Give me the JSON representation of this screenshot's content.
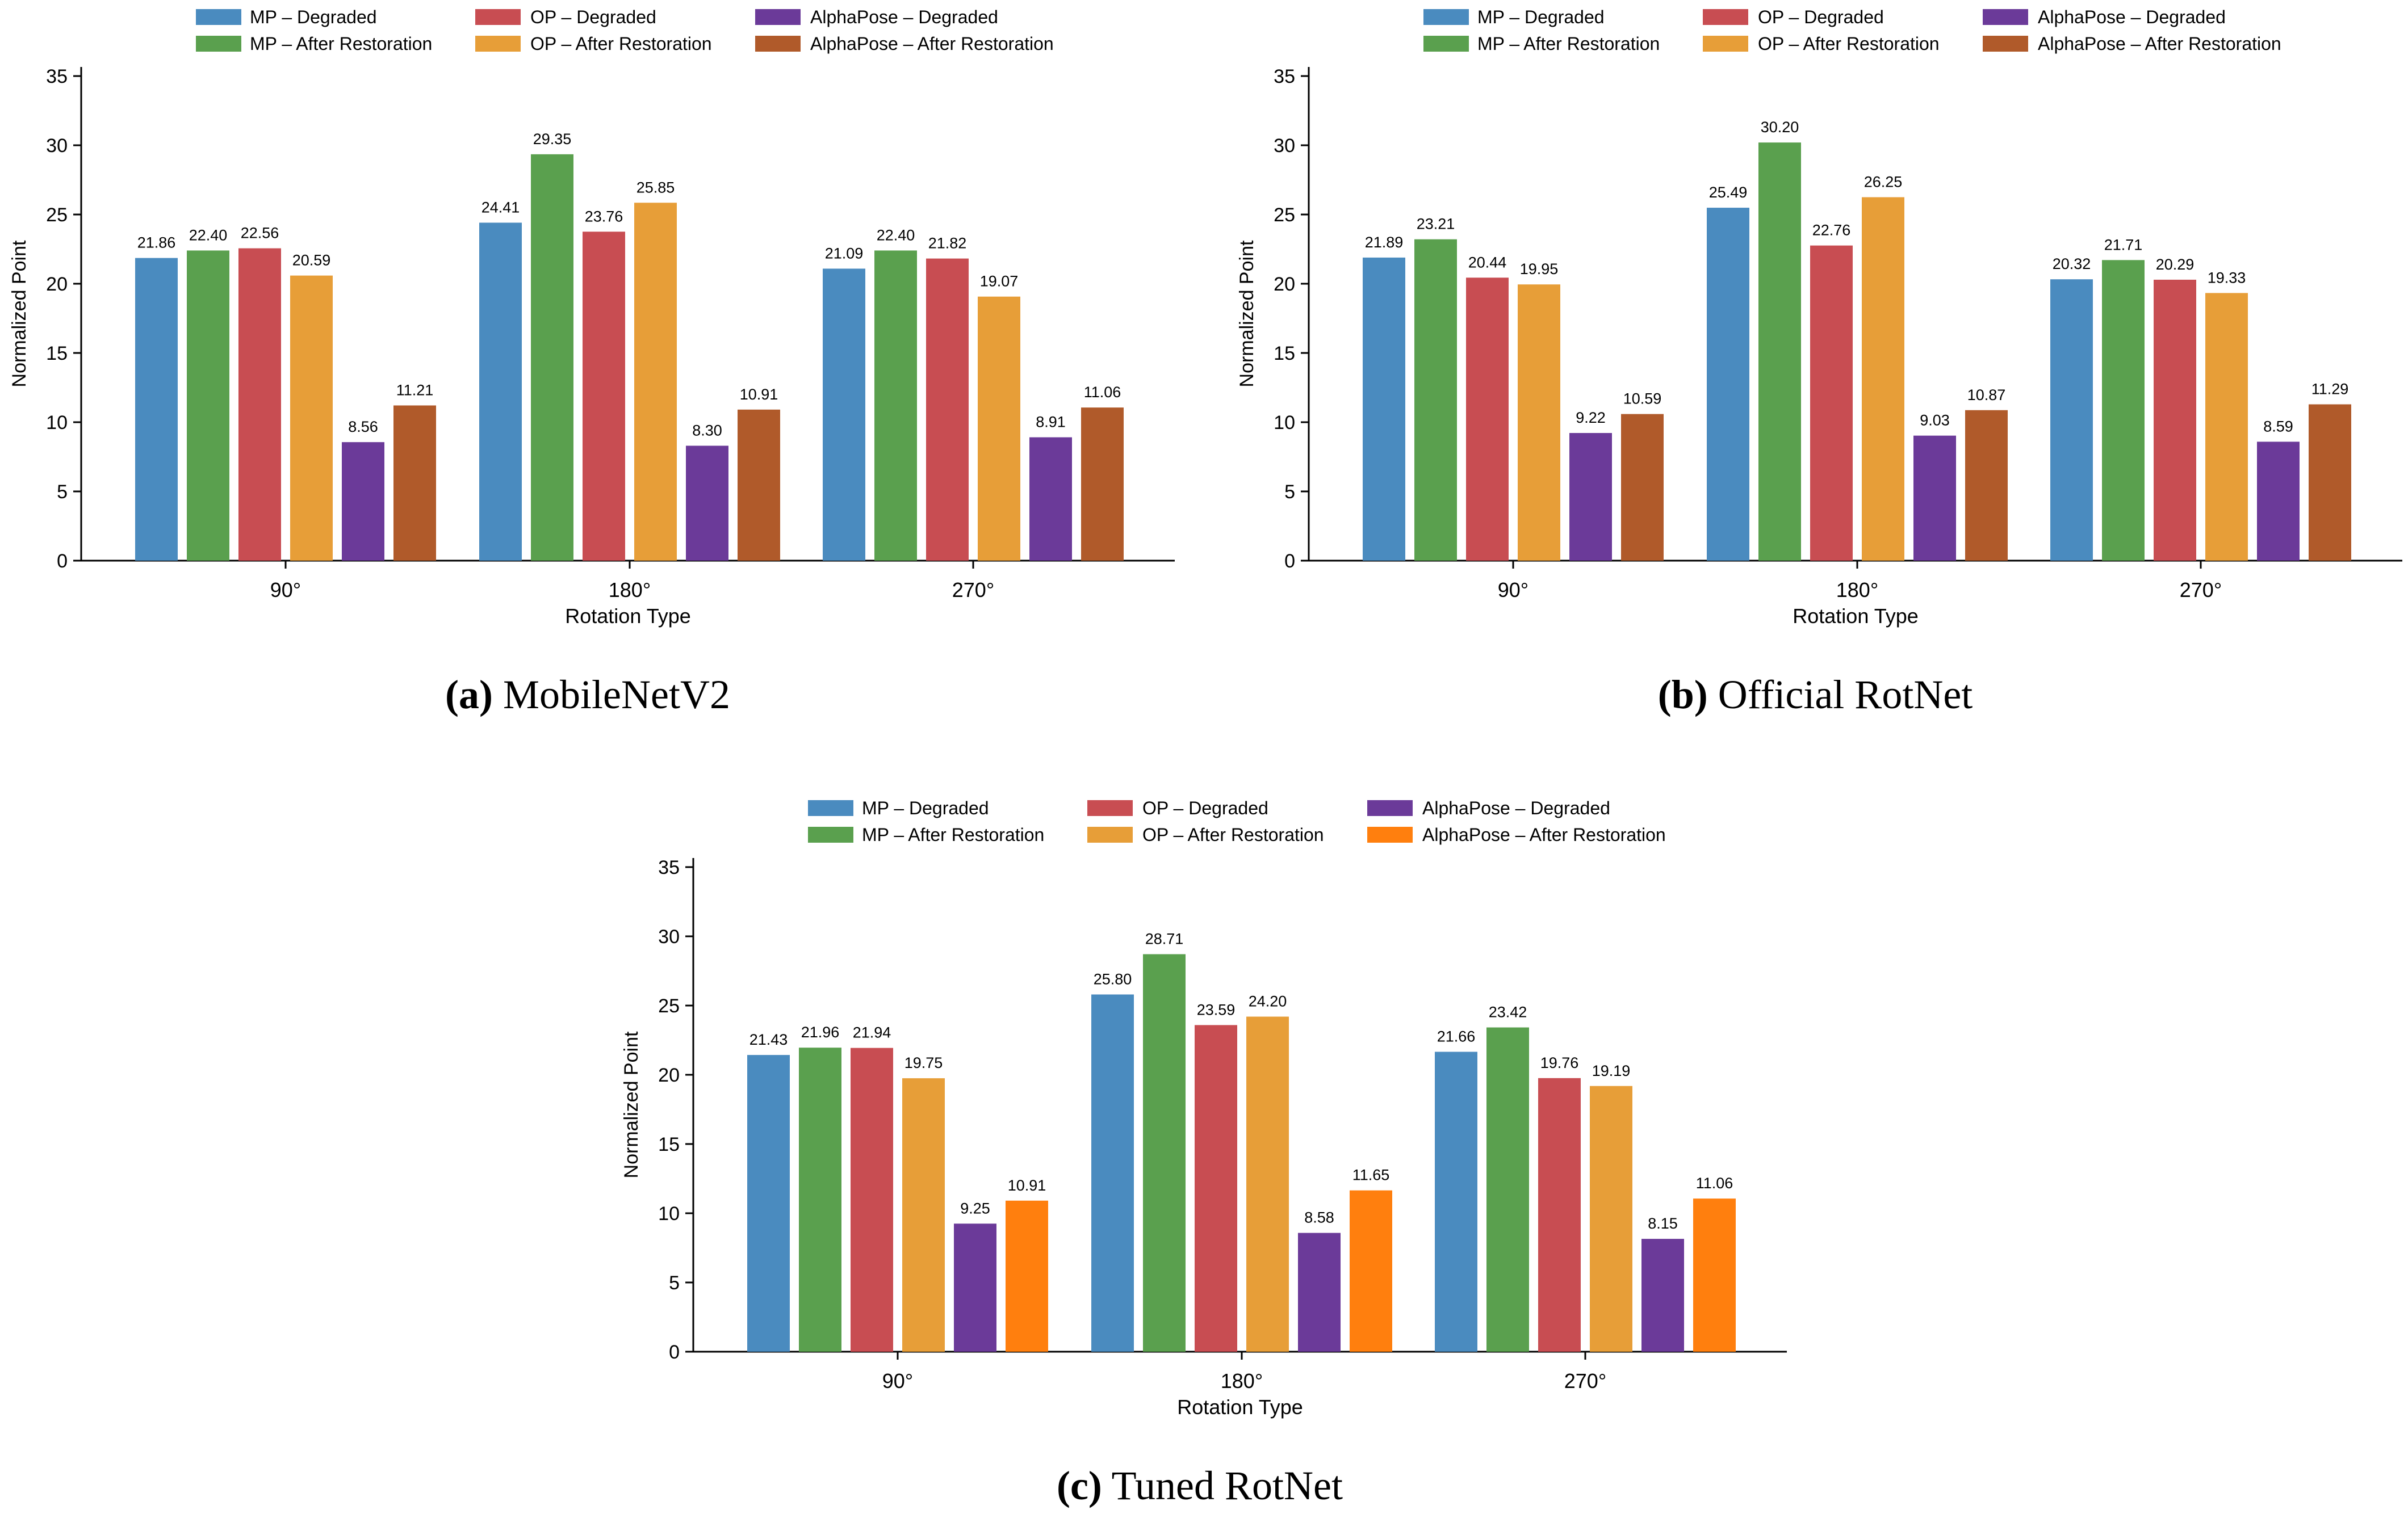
{
  "colors": {
    "mp_degraded": "#4a8bbf",
    "mp_after": "#5aa04e",
    "op_degraded": "#c84d52",
    "op_after": "#e79e38",
    "alphapose_degraded": "#6b3a99",
    "alphapose_after": "#b05a2a",
    "alphapose_after_tuned": "#ff7f0e"
  },
  "chart_data": [
    {
      "type": "bar",
      "panel": "a",
      "caption_letter": "(a)",
      "caption_title": "MobileNetV2",
      "xlabel": "Rotation Type",
      "ylabel": "Normalized Point",
      "ylim": [
        0,
        36
      ],
      "yticks": [
        "0",
        "5",
        "10",
        "15",
        "20",
        "25",
        "30",
        "35"
      ],
      "categories": [
        "90°",
        "180°",
        "270°"
      ],
      "legend": {
        "position": "top",
        "columns": 3
      },
      "series": [
        {
          "name": "MP – Degraded",
          "color_key": "mp_degraded",
          "values": [
            21.86,
            24.41,
            21.09
          ],
          "labels": [
            "21.86",
            "24.41",
            "21.09"
          ]
        },
        {
          "name": "MP – After Restoration",
          "color_key": "mp_after",
          "values": [
            22.4,
            29.35,
            22.4
          ],
          "labels": [
            "22.40",
            "29.35",
            "22.40"
          ]
        },
        {
          "name": "OP – Degraded",
          "color_key": "op_degraded",
          "values": [
            22.56,
            23.76,
            21.82
          ],
          "labels": [
            "22.56",
            "23.76",
            "21.82"
          ]
        },
        {
          "name": "OP – After Restoration",
          "color_key": "op_after",
          "values": [
            20.59,
            25.85,
            19.07
          ],
          "labels": [
            "20.59",
            "25.85",
            "19.07"
          ]
        },
        {
          "name": "AlphaPose – Degraded",
          "color_key": "alphapose_degraded",
          "values": [
            8.56,
            8.3,
            8.91
          ],
          "labels": [
            "8.56",
            "8.30",
            "8.91"
          ]
        },
        {
          "name": "AlphaPose – After Restoration",
          "color_key": "alphapose_after",
          "values": [
            11.21,
            10.91,
            11.06
          ],
          "labels": [
            "11.21",
            "10.91",
            "11.06"
          ]
        }
      ]
    },
    {
      "type": "bar",
      "panel": "b",
      "caption_letter": "(b)",
      "caption_title": "Official RotNet",
      "xlabel": "Rotation Type",
      "ylabel": "Normalized Point",
      "ylim": [
        0,
        36
      ],
      "yticks": [
        "0",
        "5",
        "10",
        "15",
        "20",
        "25",
        "30",
        "35"
      ],
      "categories": [
        "90°",
        "180°",
        "270°"
      ],
      "legend": {
        "position": "top",
        "columns": 3
      },
      "series": [
        {
          "name": "MP – Degraded",
          "color_key": "mp_degraded",
          "values": [
            21.89,
            25.49,
            20.32
          ],
          "labels": [
            "21.89",
            "25.49",
            "20.32"
          ]
        },
        {
          "name": "MP – After Restoration",
          "color_key": "mp_after",
          "values": [
            23.21,
            30.2,
            21.71
          ],
          "labels": [
            "23.21",
            "30.20",
            "21.71"
          ]
        },
        {
          "name": "OP – Degraded",
          "color_key": "op_degraded",
          "values": [
            20.44,
            22.76,
            20.29
          ],
          "labels": [
            "20.44",
            "22.76",
            "20.29"
          ]
        },
        {
          "name": "OP – After Restoration",
          "color_key": "op_after",
          "values": [
            19.95,
            26.25,
            19.33
          ],
          "labels": [
            "19.95",
            "26.25",
            "19.33"
          ]
        },
        {
          "name": "AlphaPose – Degraded",
          "color_key": "alphapose_degraded",
          "values": [
            9.22,
            9.03,
            8.59
          ],
          "labels": [
            "9.22",
            "9.03",
            "8.59"
          ]
        },
        {
          "name": "AlphaPose – After Restoration",
          "color_key": "alphapose_after",
          "values": [
            10.59,
            10.87,
            11.29
          ],
          "labels": [
            "10.59",
            "10.87",
            "11.29"
          ]
        }
      ]
    },
    {
      "type": "bar",
      "panel": "c",
      "caption_letter": "(c)",
      "caption_title": "Tuned RotNet",
      "xlabel": "Rotation Type",
      "ylabel": "Normalized Point",
      "ylim": [
        0,
        36
      ],
      "yticks": [
        "0",
        "5",
        "10",
        "15",
        "20",
        "25",
        "30",
        "35"
      ],
      "categories": [
        "90°",
        "180°",
        "270°"
      ],
      "legend": {
        "position": "top",
        "columns": 3
      },
      "series": [
        {
          "name": "MP – Degraded",
          "color_key": "mp_degraded",
          "values": [
            21.43,
            25.8,
            21.66
          ],
          "labels": [
            "21.43",
            "25.80",
            "21.66"
          ]
        },
        {
          "name": "MP – After Restoration",
          "color_key": "mp_after",
          "values": [
            21.96,
            28.71,
            23.42
          ],
          "labels": [
            "21.96",
            "28.71",
            "23.42"
          ]
        },
        {
          "name": "OP – Degraded",
          "color_key": "op_degraded",
          "values": [
            21.94,
            23.59,
            19.76
          ],
          "labels": [
            "21.94",
            "23.59",
            "19.76"
          ]
        },
        {
          "name": "OP – After Restoration",
          "color_key": "op_after",
          "values": [
            19.75,
            24.2,
            19.19
          ],
          "labels": [
            "19.75",
            "24.20",
            "19.19"
          ]
        },
        {
          "name": "AlphaPose – Degraded",
          "color_key": "alphapose_degraded",
          "values": [
            9.25,
            8.58,
            8.15
          ],
          "labels": [
            "9.25",
            "8.58",
            "8.15"
          ]
        },
        {
          "name": "AlphaPose – After Restoration",
          "color_key": "alphapose_after_tuned",
          "values": [
            10.91,
            11.65,
            11.06
          ],
          "labels": [
            "10.91",
            "11.65",
            "11.06"
          ]
        }
      ]
    }
  ]
}
